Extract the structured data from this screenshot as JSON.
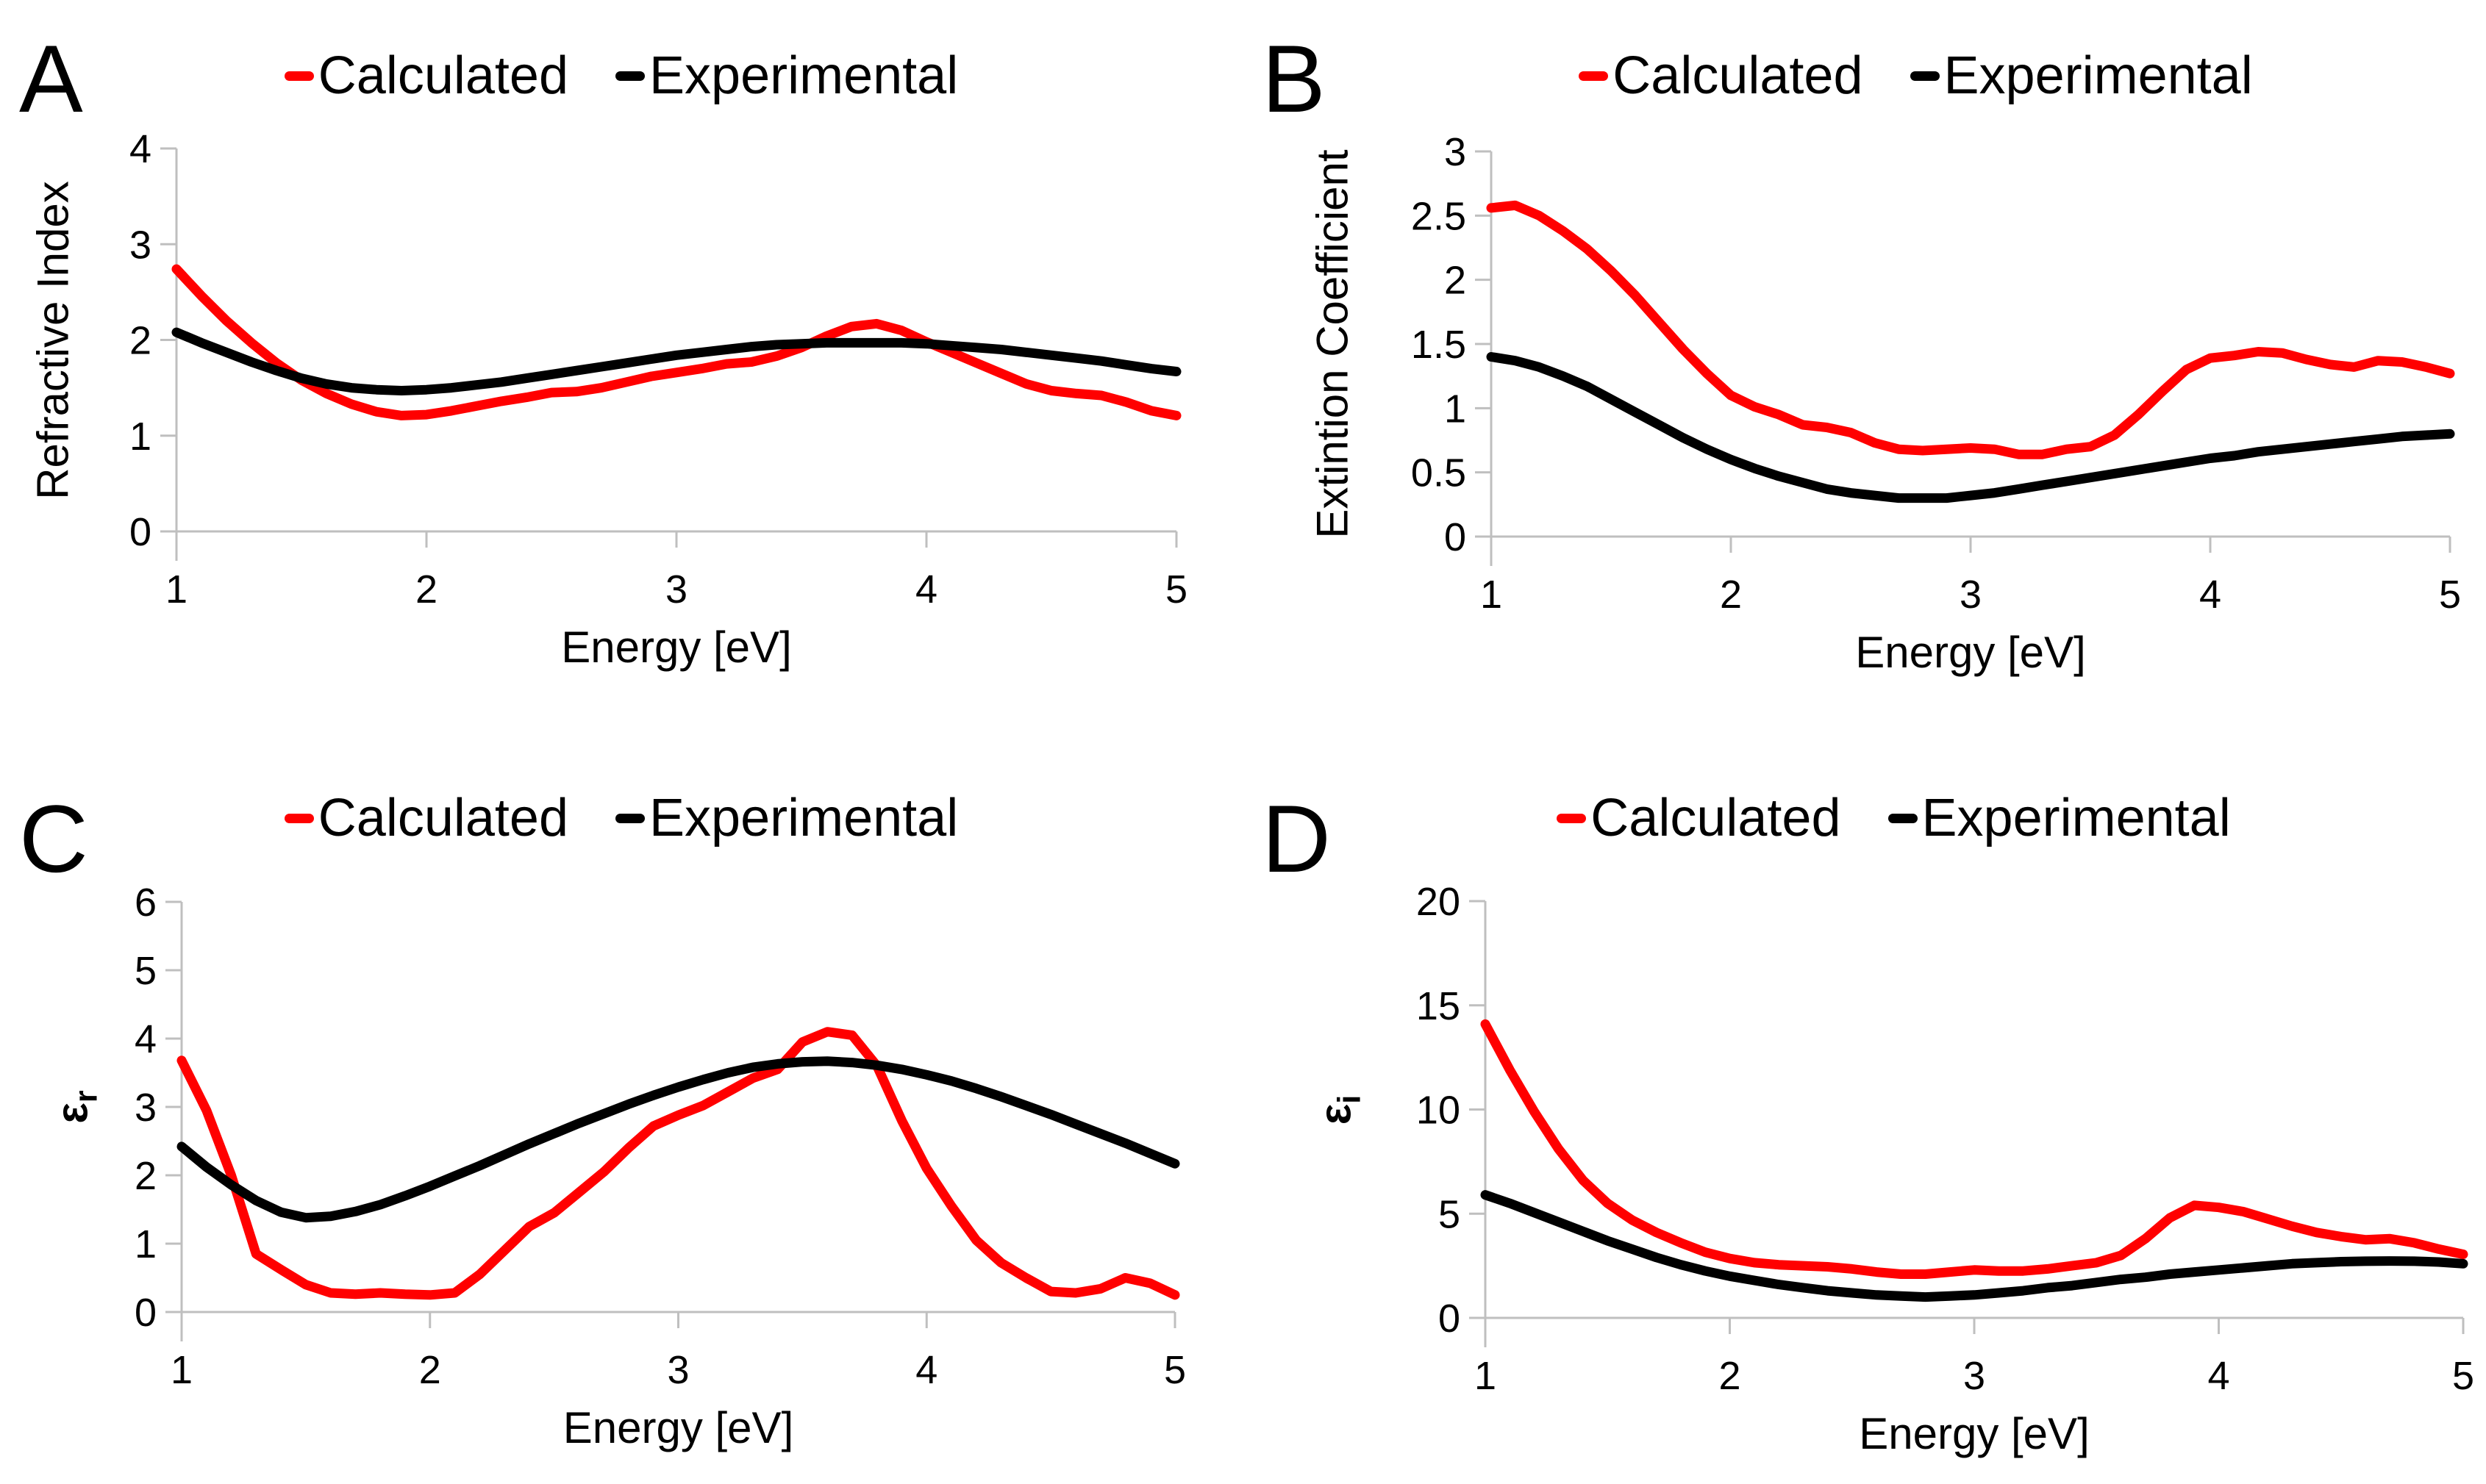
{
  "figure": {
    "background": "#FFFFFF",
    "accent_red": "#FF0000",
    "line_black": "#000000",
    "axis_color": "#BFBFBF"
  },
  "chart_data": [
    {
      "panel_label": "A",
      "type": "line",
      "xlabel": "Energy [eV]",
      "ylabel": "Refractive Index",
      "ylabel_main": "Refractive Index",
      "ylabel_sub": "",
      "xlim": [
        1,
        5
      ],
      "ylim": [
        0,
        4
      ],
      "xticks": [
        1,
        2,
        3,
        4,
        5
      ],
      "yticks": [
        0,
        1,
        2,
        3,
        4
      ],
      "grid": false,
      "legend_position": "top",
      "x": [
        1,
        1.1,
        1.2,
        1.3,
        1.4,
        1.5,
        1.6,
        1.7,
        1.8,
        1.9,
        2,
        2.1,
        2.2,
        2.3,
        2.4,
        2.5,
        2.6,
        2.7,
        2.8,
        2.9,
        3,
        3.1,
        3.2,
        3.3,
        3.4,
        3.5,
        3.6,
        3.7,
        3.8,
        3.9,
        4,
        4.1,
        4.2,
        4.3,
        4.4,
        4.5,
        4.6,
        4.7,
        4.8,
        4.9,
        5
      ],
      "series": [
        {
          "name": "Calculated",
          "color": "#FF0000",
          "values": [
            2.74,
            2.46,
            2.2,
            1.97,
            1.76,
            1.58,
            1.44,
            1.33,
            1.25,
            1.21,
            1.22,
            1.26,
            1.31,
            1.36,
            1.4,
            1.45,
            1.46,
            1.5,
            1.56,
            1.62,
            1.66,
            1.7,
            1.75,
            1.77,
            1.83,
            1.92,
            2.04,
            2.14,
            2.17,
            2.1,
            1.98,
            1.87,
            1.76,
            1.65,
            1.54,
            1.47,
            1.44,
            1.42,
            1.35,
            1.26,
            1.21
          ]
        },
        {
          "name": "Experimental",
          "color": "#000000",
          "values": [
            2.08,
            1.97,
            1.87,
            1.77,
            1.68,
            1.6,
            1.54,
            1.5,
            1.48,
            1.47,
            1.48,
            1.5,
            1.53,
            1.56,
            1.6,
            1.64,
            1.68,
            1.72,
            1.76,
            1.8,
            1.84,
            1.87,
            1.9,
            1.93,
            1.95,
            1.96,
            1.97,
            1.97,
            1.97,
            1.97,
            1.96,
            1.94,
            1.92,
            1.9,
            1.87,
            1.84,
            1.81,
            1.78,
            1.74,
            1.7,
            1.67
          ]
        }
      ]
    },
    {
      "panel_label": "B",
      "type": "line",
      "xlabel": "Energy [eV]",
      "ylabel": "Extintion Coefficient",
      "ylabel_main": "Extintion Coefficient",
      "ylabel_sub": "",
      "xlim": [
        1,
        5
      ],
      "ylim": [
        0,
        3
      ],
      "xticks": [
        1,
        2,
        3,
        4,
        5
      ],
      "yticks": [
        0,
        0.5,
        1,
        1.5,
        2,
        2.5,
        3
      ],
      "grid": false,
      "legend_position": "top",
      "x": [
        1,
        1.1,
        1.2,
        1.3,
        1.4,
        1.5,
        1.6,
        1.7,
        1.8,
        1.9,
        2,
        2.1,
        2.2,
        2.3,
        2.4,
        2.5,
        2.6,
        2.7,
        2.8,
        2.9,
        3,
        3.1,
        3.2,
        3.3,
        3.4,
        3.5,
        3.6,
        3.7,
        3.8,
        3.9,
        4,
        4.1,
        4.2,
        4.3,
        4.4,
        4.5,
        4.6,
        4.7,
        4.8,
        4.9,
        5
      ],
      "series": [
        {
          "name": "Calculated",
          "color": "#FF0000",
          "values": [
            2.56,
            2.58,
            2.5,
            2.38,
            2.24,
            2.07,
            1.88,
            1.67,
            1.46,
            1.27,
            1.1,
            1.01,
            0.95,
            0.87,
            0.85,
            0.81,
            0.73,
            0.68,
            0.67,
            0.68,
            0.69,
            0.68,
            0.64,
            0.64,
            0.68,
            0.7,
            0.79,
            0.95,
            1.13,
            1.3,
            1.39,
            1.41,
            1.44,
            1.43,
            1.38,
            1.34,
            1.32,
            1.37,
            1.36,
            1.32,
            1.27
          ]
        },
        {
          "name": "Experimental",
          "color": "#000000",
          "values": [
            1.4,
            1.37,
            1.32,
            1.25,
            1.17,
            1.07,
            0.97,
            0.87,
            0.77,
            0.68,
            0.6,
            0.53,
            0.47,
            0.42,
            0.37,
            0.34,
            0.32,
            0.3,
            0.3,
            0.3,
            0.32,
            0.34,
            0.37,
            0.4,
            0.43,
            0.46,
            0.49,
            0.52,
            0.55,
            0.58,
            0.61,
            0.63,
            0.66,
            0.68,
            0.7,
            0.72,
            0.74,
            0.76,
            0.78,
            0.79,
            0.8
          ]
        }
      ]
    },
    {
      "panel_label": "C",
      "type": "line",
      "xlabel": "Energy [eV]",
      "ylabel": "εr",
      "ylabel_main": "ε",
      "ylabel_sub": "r",
      "xlim": [
        1,
        5
      ],
      "ylim": [
        0,
        6
      ],
      "xticks": [
        1,
        2,
        3,
        4,
        5
      ],
      "yticks": [
        0,
        1,
        2,
        3,
        4,
        5,
        6
      ],
      "grid": false,
      "legend_position": "top",
      "x": [
        1,
        1.1,
        1.2,
        1.3,
        1.4,
        1.5,
        1.6,
        1.7,
        1.8,
        1.9,
        2,
        2.1,
        2.2,
        2.3,
        2.4,
        2.5,
        2.6,
        2.7,
        2.8,
        2.9,
        3,
        3.1,
        3.2,
        3.3,
        3.4,
        3.5,
        3.6,
        3.7,
        3.8,
        3.9,
        4,
        4.1,
        4.2,
        4.3,
        4.4,
        4.5,
        4.6,
        4.7,
        4.8,
        4.9,
        5
      ],
      "series": [
        {
          "name": "Calculated",
          "color": "#FF0000",
          "values": [
            3.68,
            2.95,
            2.0,
            0.85,
            0.62,
            0.4,
            0.28,
            0.26,
            0.28,
            0.26,
            0.25,
            0.28,
            0.55,
            0.9,
            1.25,
            1.45,
            1.75,
            2.05,
            2.4,
            2.72,
            2.88,
            3.02,
            3.22,
            3.42,
            3.55,
            3.95,
            4.1,
            4.05,
            3.6,
            2.8,
            2.1,
            1.55,
            1.05,
            0.72,
            0.5,
            0.3,
            0.28,
            0.34,
            0.5,
            0.42,
            0.25
          ]
        },
        {
          "name": "Experimental",
          "color": "#000000",
          "values": [
            2.42,
            2.12,
            1.86,
            1.63,
            1.46,
            1.38,
            1.4,
            1.47,
            1.57,
            1.7,
            1.84,
            1.99,
            2.14,
            2.3,
            2.46,
            2.61,
            2.76,
            2.9,
            3.04,
            3.17,
            3.29,
            3.4,
            3.5,
            3.58,
            3.63,
            3.66,
            3.67,
            3.65,
            3.61,
            3.55,
            3.47,
            3.38,
            3.27,
            3.15,
            3.02,
            2.89,
            2.75,
            2.61,
            2.47,
            2.32,
            2.17
          ]
        }
      ]
    },
    {
      "panel_label": "D",
      "type": "line",
      "xlabel": "Energy [eV]",
      "ylabel": "εi",
      "ylabel_main": "ε",
      "ylabel_sub": "i",
      "xlim": [
        1,
        5
      ],
      "ylim": [
        0,
        20
      ],
      "xticks": [
        1,
        2,
        3,
        4,
        5
      ],
      "yticks": [
        0,
        5,
        10,
        15,
        20
      ],
      "grid": false,
      "legend_position": "top",
      "x": [
        1,
        1.1,
        1.2,
        1.3,
        1.4,
        1.5,
        1.6,
        1.7,
        1.8,
        1.9,
        2,
        2.1,
        2.2,
        2.3,
        2.4,
        2.5,
        2.6,
        2.7,
        2.8,
        2.9,
        3,
        3.1,
        3.2,
        3.3,
        3.4,
        3.5,
        3.6,
        3.7,
        3.8,
        3.9,
        4,
        4.1,
        4.2,
        4.3,
        4.4,
        4.5,
        4.6,
        4.7,
        4.8,
        4.9,
        5
      ],
      "series": [
        {
          "name": "Calculated",
          "color": "#FF0000",
          "values": [
            14.1,
            11.9,
            9.9,
            8.1,
            6.6,
            5.5,
            4.7,
            4.1,
            3.6,
            3.15,
            2.85,
            2.65,
            2.55,
            2.5,
            2.45,
            2.35,
            2.2,
            2.1,
            2.1,
            2.2,
            2.3,
            2.25,
            2.25,
            2.35,
            2.5,
            2.65,
            3.0,
            3.8,
            4.8,
            5.4,
            5.3,
            5.1,
            4.75,
            4.4,
            4.1,
            3.9,
            3.75,
            3.8,
            3.6,
            3.3,
            3.05
          ]
        },
        {
          "name": "Experimental",
          "color": "#000000",
          "values": [
            5.9,
            5.5,
            5.05,
            4.6,
            4.15,
            3.7,
            3.3,
            2.9,
            2.55,
            2.25,
            2.0,
            1.8,
            1.6,
            1.45,
            1.3,
            1.2,
            1.1,
            1.05,
            1.0,
            1.05,
            1.1,
            1.2,
            1.3,
            1.45,
            1.55,
            1.7,
            1.85,
            1.95,
            2.1,
            2.2,
            2.3,
            2.4,
            2.5,
            2.6,
            2.65,
            2.7,
            2.72,
            2.73,
            2.72,
            2.68,
            2.6
          ]
        }
      ]
    }
  ]
}
